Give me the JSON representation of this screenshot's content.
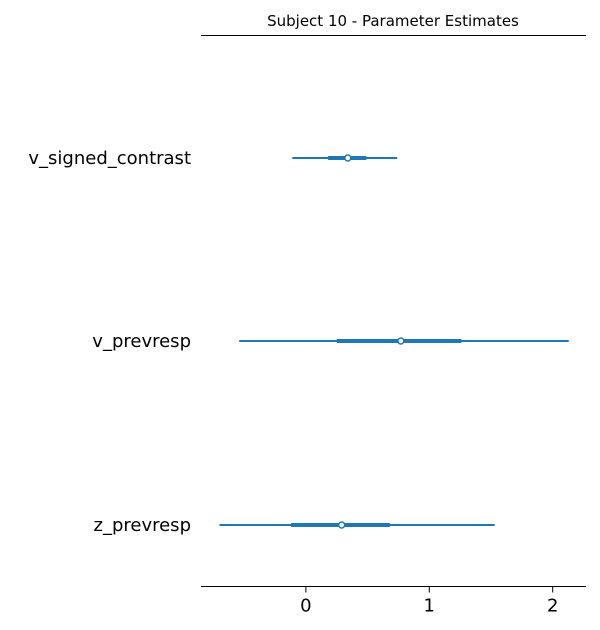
{
  "chart_data": {
    "type": "forest",
    "title": "Subject 10 - Parameter Estimates",
    "xlim": [
      -0.85,
      2.27
    ],
    "xticks": [
      0,
      1,
      2
    ],
    "xtick_labels": [
      "0",
      "1",
      "2"
    ],
    "color": "#1f77b4",
    "parameters": [
      {
        "name": "v_signed_contrast",
        "mean": 0.34,
        "inner": [
          0.18,
          0.49
        ],
        "outer": [
          -0.11,
          0.74
        ]
      },
      {
        "name": "v_prevresp",
        "mean": 0.77,
        "inner": [
          0.25,
          1.26
        ],
        "outer": [
          -0.54,
          2.13
        ]
      },
      {
        "name": "z_prevresp",
        "mean": 0.29,
        "inner": [
          -0.12,
          0.68
        ],
        "outer": [
          -0.7,
          1.53
        ]
      }
    ]
  }
}
